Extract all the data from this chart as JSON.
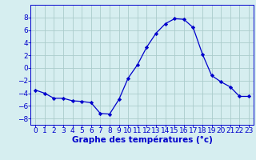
{
  "x": [
    0,
    1,
    2,
    3,
    4,
    5,
    6,
    7,
    8,
    9,
    10,
    11,
    12,
    13,
    14,
    15,
    16,
    17,
    18,
    19,
    20,
    21,
    22,
    23
  ],
  "y": [
    -3.5,
    -4.0,
    -4.8,
    -4.8,
    -5.2,
    -5.3,
    -5.5,
    -7.2,
    -7.3,
    -5.0,
    -1.6,
    0.5,
    3.3,
    5.5,
    7.0,
    7.8,
    7.7,
    6.4,
    2.2,
    -1.2,
    -2.2,
    -3.0,
    -4.5,
    -4.5
  ],
  "line_color": "#0000cc",
  "marker": "D",
  "marker_size": 2.2,
  "bg_color": "#d6eef0",
  "grid_color": "#aacccc",
  "xlabel": "Graphe des températures (°c)",
  "xlabel_color": "#0000cc",
  "xlabel_fontsize": 7.5,
  "tick_color": "#0000cc",
  "tick_fontsize": 6.5,
  "ylim": [
    -9,
    10
  ],
  "yticks": [
    -8,
    -6,
    -4,
    -2,
    0,
    2,
    4,
    6,
    8
  ],
  "xlim": [
    -0.5,
    23.5
  ],
  "xticks": [
    0,
    1,
    2,
    3,
    4,
    5,
    6,
    7,
    8,
    9,
    10,
    11,
    12,
    13,
    14,
    15,
    16,
    17,
    18,
    19,
    20,
    21,
    22,
    23
  ]
}
